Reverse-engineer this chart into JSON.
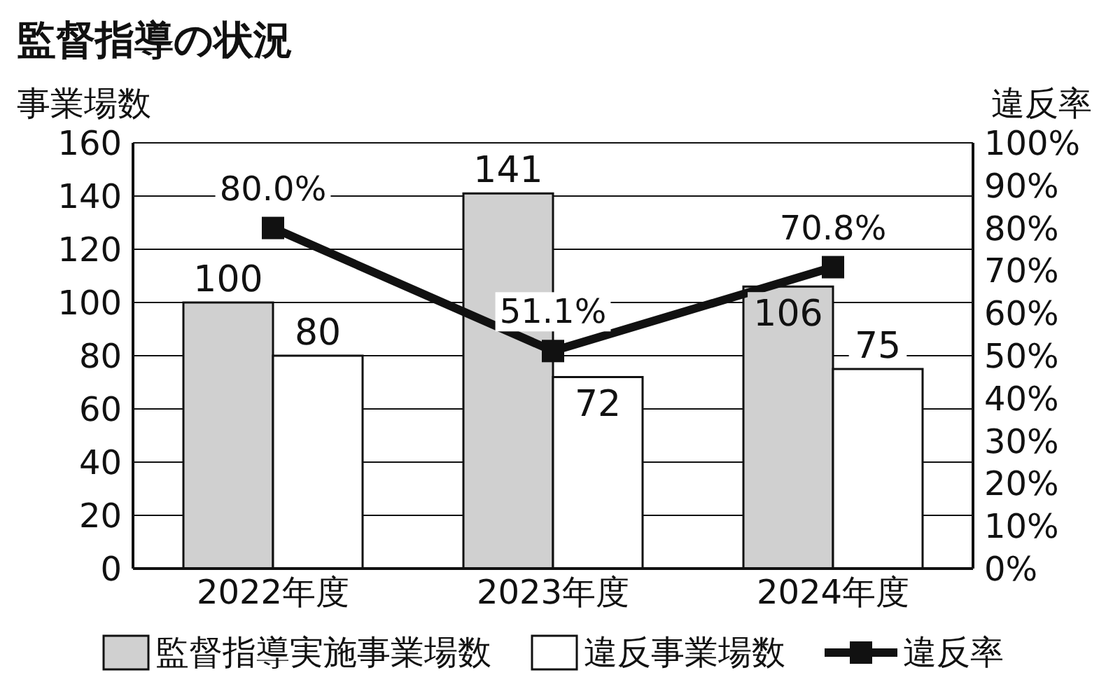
{
  "chart_data": {
    "type": "bar",
    "title": "監督指導の状況",
    "ylabel": "事業場数",
    "y2label": "違反率",
    "categories": [
      "2022年度",
      "2023年度",
      "2024年度"
    ],
    "series": [
      {
        "name": "監督指導実施事業場数",
        "color": "#d0d0d0",
        "values": [
          100,
          141,
          106
        ],
        "value_labels": [
          "100",
          "141",
          "106"
        ]
      },
      {
        "name": "違反事業場数",
        "color": "#ffffff",
        "values": [
          80,
          72,
          75
        ],
        "value_labels": [
          "80",
          "72",
          "75"
        ]
      },
      {
        "name": "違反率",
        "type": "line",
        "axis": "y2",
        "color": "#111111",
        "values": [
          80.0,
          51.1,
          70.8
        ],
        "value_labels": [
          "80.0%",
          "51.1%",
          "70.8%"
        ]
      }
    ],
    "ylim": [
      0,
      160
    ],
    "yticks": [
      0,
      20,
      40,
      60,
      80,
      100,
      120,
      140,
      160
    ],
    "y2lim": [
      0,
      100
    ],
    "y2ticks": [
      {
        "value": 0,
        "label": "0%"
      },
      {
        "value": 10,
        "label": "10%"
      },
      {
        "value": 20,
        "label": "20%"
      },
      {
        "value": 30,
        "label": "30%"
      },
      {
        "value": 40,
        "label": "40%"
      },
      {
        "value": 50,
        "label": "50%"
      },
      {
        "value": 60,
        "label": "60%"
      },
      {
        "value": 70,
        "label": "70%"
      },
      {
        "value": 80,
        "label": "80%"
      },
      {
        "value": 90,
        "label": "90%"
      },
      {
        "value": 100,
        "label": "100%"
      }
    ],
    "grid": "y",
    "legend": "bottom",
    "marker": "square",
    "line_style": "solid"
  }
}
